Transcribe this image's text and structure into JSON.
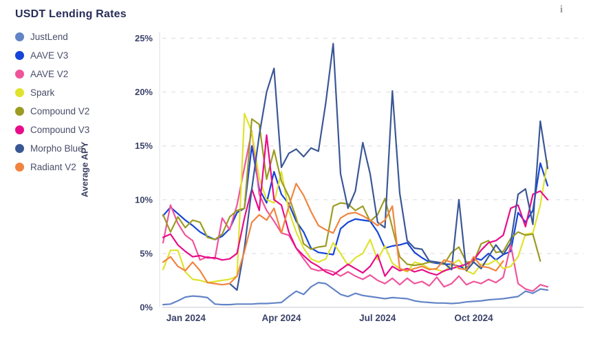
{
  "page": {
    "background": "#ffffff"
  },
  "header": {
    "title": "USDT Lending Rates",
    "info_icon": "i"
  },
  "chart_data": {
    "type": "line",
    "title": "USDT Lending Rates",
    "ylabel": "Average APY",
    "ylim": [
      0,
      25
    ],
    "y_ticks": [
      0,
      5,
      10,
      15,
      20,
      25
    ],
    "y_tick_suffix": "%",
    "grid": "dashed-horizontal",
    "legend_position": "left",
    "x": [
      "2023-12-10",
      "2023-12-17",
      "2023-12-24",
      "2023-12-31",
      "2024-01-07",
      "2024-01-14",
      "2024-01-21",
      "2024-01-28",
      "2024-02-04",
      "2024-02-11",
      "2024-02-18",
      "2024-02-25",
      "2024-03-03",
      "2024-03-10",
      "2024-03-17",
      "2024-03-24",
      "2024-03-31",
      "2024-04-07",
      "2024-04-14",
      "2024-04-21",
      "2024-04-28",
      "2024-05-05",
      "2024-05-12",
      "2024-05-19",
      "2024-05-26",
      "2024-06-02",
      "2024-06-09",
      "2024-06-16",
      "2024-06-23",
      "2024-06-30",
      "2024-07-07",
      "2024-07-14",
      "2024-07-21",
      "2024-07-28",
      "2024-08-04",
      "2024-08-11",
      "2024-08-18",
      "2024-08-25",
      "2024-09-01",
      "2024-09-08",
      "2024-09-15",
      "2024-09-22",
      "2024-09-29",
      "2024-10-06",
      "2024-10-13",
      "2024-10-20",
      "2024-10-27",
      "2024-11-03",
      "2024-11-10",
      "2024-11-17",
      "2024-11-24",
      "2024-12-01",
      "2024-12-08"
    ],
    "x_ticks": [
      {
        "index": 3.1,
        "label": "Jan 2024"
      },
      {
        "index": 16,
        "label": "Apr 2024"
      },
      {
        "index": 29,
        "label": "Jul 2024"
      },
      {
        "index": 42,
        "label": "Oct 2024"
      }
    ],
    "series": [
      {
        "name": "JustLend",
        "color": "#6384C6",
        "values": [
          0.25,
          0.3,
          0.6,
          0.95,
          1.05,
          1.0,
          0.9,
          0.3,
          0.25,
          0.25,
          0.3,
          0.3,
          0.3,
          0.35,
          0.35,
          0.4,
          0.45,
          1.0,
          1.5,
          1.2,
          1.9,
          2.3,
          2.2,
          1.7,
          1.2,
          1.0,
          1.3,
          1.1,
          1.0,
          0.9,
          0.8,
          0.9,
          0.85,
          0.8,
          0.6,
          0.5,
          0.45,
          0.4,
          0.4,
          0.35,
          0.4,
          0.5,
          0.55,
          0.6,
          0.7,
          0.75,
          0.8,
          0.9,
          1.0,
          1.5,
          1.3,
          1.7,
          1.6
        ]
      },
      {
        "name": "AAVE V3",
        "color": "#1544D8",
        "values": [
          8.5,
          9.3,
          8.7,
          8.1,
          7.6,
          7.0,
          6.6,
          6.3,
          6.6,
          7.3,
          8.8,
          9.2,
          15.0,
          11.0,
          9.7,
          12.6,
          10.5,
          9.6,
          8.0,
          7.0,
          5.5,
          5.1,
          5.0,
          4.9,
          7.3,
          7.9,
          8.2,
          8.1,
          8.0,
          7.0,
          5.5,
          5.7,
          5.8,
          6.0,
          5.1,
          4.6,
          4.2,
          4.1,
          4.0,
          4.0,
          3.8,
          3.6,
          4.6,
          4.4,
          5.0,
          4.4,
          4.9,
          5.2,
          8.8,
          7.9,
          9.0,
          13.4,
          11.3
        ]
      },
      {
        "name": "AAVE V2",
        "color": "#F0549B",
        "values": [
          6.0,
          9.5,
          7.8,
          6.7,
          6.2,
          4.4,
          4.7,
          4.5,
          8.3,
          7.2,
          9.5,
          13.0,
          16.4,
          10.5,
          9.0,
          8.0,
          6.9,
          6.7,
          5.5,
          4.5,
          3.6,
          3.4,
          3.5,
          3.3,
          2.9,
          3.3,
          2.9,
          2.6,
          3.0,
          2.5,
          2.2,
          2.7,
          2.1,
          2.7,
          2.2,
          2.4,
          2.0,
          2.8,
          1.9,
          2.2,
          2.9,
          2.1,
          2.4,
          2.2,
          2.6,
          2.3,
          2.8,
          5.8,
          2.2,
          1.7,
          1.5,
          2.1,
          1.9
        ]
      },
      {
        "name": "Spark",
        "color": "#DFE32D",
        "values": [
          3.5,
          5.3,
          5.3,
          3.3,
          2.6,
          2.5,
          2.3,
          2.4,
          2.5,
          2.6,
          2.9,
          18.0,
          16.3,
          12.0,
          10.0,
          9.7,
          12.6,
          9.0,
          7.0,
          5.5,
          4.5,
          4.2,
          4.5,
          6.0,
          5.0,
          3.9,
          4.6,
          5.0,
          6.3,
          4.4,
          5.7,
          4.1,
          3.6,
          3.3,
          4.2,
          4.0,
          3.6,
          3.5,
          3.3,
          4.0,
          4.4,
          3.4,
          3.1,
          4.0,
          4.0,
          4.4,
          3.6,
          3.8,
          4.7,
          6.8,
          6.9,
          9.5,
          13.6
        ]
      },
      {
        "name": "Compound V2",
        "color": "#9C9B23",
        "values": [
          8.6,
          7.0,
          8.4,
          7.4,
          8.1,
          7.9,
          6.5,
          6.3,
          6.8,
          8.4,
          9.0,
          9.2,
          17.5,
          17.0,
          11.9,
          14.6,
          11.7,
          10.3,
          8.3,
          5.9,
          5.4,
          5.6,
          5.7,
          9.4,
          9.7,
          9.6,
          9.0,
          9.4,
          8.0,
          8.6,
          10.1,
          7.4,
          4.7,
          4.0,
          3.9,
          4.0,
          4.2,
          4.2,
          4.0,
          5.1,
          5.6,
          4.2,
          4.2,
          5.9,
          6.2,
          5.1,
          5.2,
          6.4,
          7.0,
          6.7,
          6.8,
          4.3,
          null
        ]
      },
      {
        "name": "Compound V3",
        "color": "#E80C8A",
        "values": [
          6.5,
          6.8,
          5.8,
          5.2,
          4.7,
          4.8,
          4.6,
          4.6,
          4.4,
          4.5,
          5.0,
          8.3,
          11.0,
          9.0,
          16.0,
          10.0,
          9.5,
          7.0,
          5.5,
          4.8,
          4.2,
          3.8,
          3.3,
          3.0,
          3.5,
          4.0,
          3.6,
          3.2,
          3.8,
          4.9,
          2.9,
          3.8,
          3.4,
          3.6,
          3.3,
          3.5,
          3.2,
          3.0,
          3.4,
          3.6,
          3.8,
          4.0,
          4.4,
          5.3,
          6.0,
          6.2,
          6.7,
          9.2,
          9.5,
          7.5,
          10.5,
          10.8,
          10.0
        ]
      },
      {
        "name": "Morpho Blue",
        "color": "#3A5795",
        "values": [
          null,
          null,
          null,
          null,
          null,
          null,
          null,
          null,
          null,
          2.2,
          1.6,
          5.5,
          11.0,
          16.0,
          20.0,
          22.2,
          13.0,
          14.3,
          14.7,
          14.0,
          14.8,
          14.5,
          19.0,
          24.5,
          12.4,
          9.2,
          10.8,
          15.3,
          12.4,
          7.9,
          7.4,
          20.1,
          10.6,
          6.2,
          5.5,
          5.4,
          4.3,
          4.2,
          4.1,
          3.5,
          10.0,
          3.4,
          4.2,
          3.6,
          4.7,
          5.8,
          4.9,
          6.0,
          10.5,
          11.0,
          7.7,
          17.3,
          12.9
        ]
      },
      {
        "name": "Radiant V2",
        "color": "#F08440",
        "values": [
          4.2,
          4.7,
          3.8,
          3.4,
          4.2,
          3.4,
          2.3,
          2.2,
          2.1,
          2.2,
          2.9,
          5.2,
          7.9,
          8.6,
          8.1,
          9.2,
          6.9,
          9.4,
          11.5,
          10.4,
          8.9,
          7.6,
          7.2,
          6.9,
          8.3,
          8.7,
          8.8,
          8.5,
          8.1,
          7.6,
          8.1,
          9.4,
          3.6,
          3.4,
          3.6,
          3.8,
          3.5,
          3.6,
          4.4,
          4.2,
          3.6,
          3.5,
          4.7,
          3.8,
          3.7,
          3.4,
          4.3,
          null,
          null,
          null,
          null,
          null,
          null
        ]
      }
    ]
  }
}
